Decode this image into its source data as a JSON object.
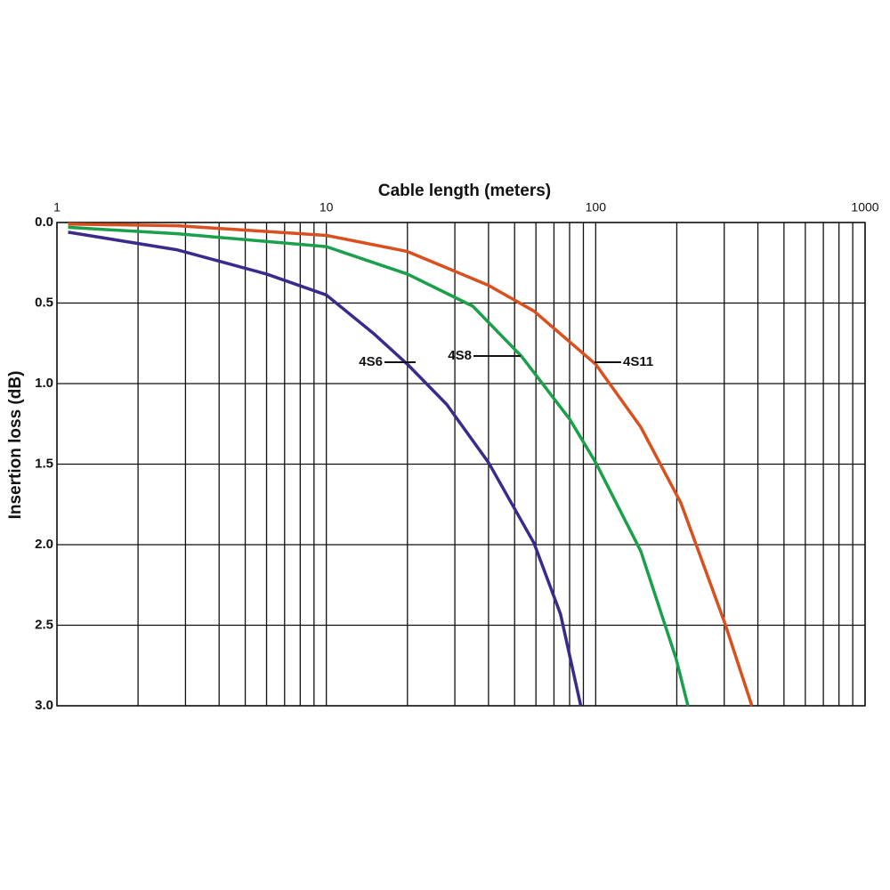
{
  "chart_data": {
    "type": "line",
    "x_label": "Cable length (meters)",
    "y_label": "Insertion loss (dB)",
    "x_log": true,
    "y_inverted": true,
    "grid": true,
    "xlim": [
      1,
      1000
    ],
    "xticks": [
      1,
      10,
      100,
      1000
    ],
    "ylim": [
      0,
      3
    ],
    "yticks": [
      {
        "value": 0,
        "label": "0.0"
      },
      0.5,
      {
        "value": 1,
        "label": "1.0"
      },
      1.5,
      {
        "value": 2,
        "label": "2.0"
      },
      2.5,
      {
        "value": 3,
        "label": "3.0"
      }
    ],
    "series": [
      {
        "name": "4S6",
        "color": "#3a2a8c",
        "x": [
          1.1,
          2.8,
          6,
          10,
          15,
          20,
          28,
          40,
          59,
          74,
          88
        ],
        "values": [
          0.06,
          0.17,
          0.32,
          0.45,
          0.69,
          0.88,
          1.13,
          1.49,
          1.99,
          2.43,
          3.0
        ]
      },
      {
        "name": "4S8",
        "color": "#1aa04a",
        "x": [
          1.1,
          2.8,
          10,
          20,
          35,
          53,
          80,
          100,
          147,
          199,
          220
        ],
        "values": [
          0.03,
          0.07,
          0.15,
          0.32,
          0.52,
          0.83,
          1.22,
          1.49,
          2.04,
          2.71,
          3.0
        ]
      },
      {
        "name": "4S11",
        "color": "#d9501e",
        "x": [
          1.1,
          2.8,
          10,
          20,
          40,
          59,
          100,
          147,
          207,
          302,
          380
        ],
        "values": [
          0.01,
          0.02,
          0.08,
          0.18,
          0.39,
          0.55,
          0.88,
          1.27,
          1.74,
          2.49,
          3.0
        ]
      }
    ]
  }
}
